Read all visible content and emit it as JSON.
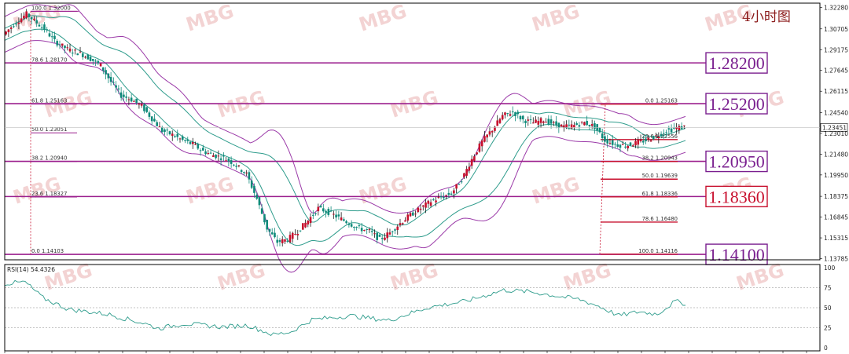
{
  "chart_data": {
    "type": "candlestick",
    "title": "4小时图",
    "price_axis": {
      "ylim": [
        1.137,
        1.326
      ],
      "ticks": [
        "1.32280",
        "1.30705",
        "1.29175",
        "1.27645",
        "1.26115",
        "1.24540",
        "1.23010",
        "1.21480",
        "1.19950",
        "1.18375",
        "1.16845",
        "1.15315",
        "1.13785"
      ]
    },
    "current_price": "1.23451",
    "key_levels": [
      {
        "label": "1.28200",
        "value": 1.282,
        "color": "#7a1f8f"
      },
      {
        "label": "1.25200",
        "value": 1.252,
        "color": "#7a1f8f"
      },
      {
        "label": "1.20950",
        "value": 1.2095,
        "color": "#7a1f8f"
      },
      {
        "label": "1.18360",
        "value": 1.1836,
        "color": "#c8102e"
      },
      {
        "label": "1.14100",
        "value": 1.141,
        "color": "#7a1f8f"
      }
    ],
    "fib_left": [
      {
        "text": "100.0 1.32000",
        "value": 1.32
      },
      {
        "text": "78.6 1.28170",
        "value": 1.2817
      },
      {
        "text": "61.8 1.25163",
        "value": 1.25163
      },
      {
        "text": "50.0 1.23051",
        "value": 1.23051
      },
      {
        "text": "38.2 1.20940",
        "value": 1.2094
      },
      {
        "text": "23.6 1.18327",
        "value": 1.18327
      },
      {
        "text": "0.0 1.14103",
        "value": 1.14103
      }
    ],
    "fib_right": [
      {
        "text": "0.0 1.25163",
        "value": 1.25163
      },
      {
        "text": "23.6 1.22556",
        "value": 1.22556
      },
      {
        "text": "38.2 1.20943",
        "value": 1.20943
      },
      {
        "text": "50.0 1.19639",
        "value": 1.19639
      },
      {
        "text": "61.8 1.18336",
        "value": 1.18336
      },
      {
        "text": "78.6 1.16480",
        "value": 1.1648
      },
      {
        "text": "100.0 1.14116",
        "value": 1.14116
      }
    ],
    "close_path": [
      [
        0,
        1.303
      ],
      [
        5,
        1.312
      ],
      [
        9,
        1.318
      ],
      [
        12,
        1.313
      ],
      [
        16,
        1.307
      ],
      [
        20,
        1.298
      ],
      [
        25,
        1.292
      ],
      [
        30,
        1.289
      ],
      [
        34,
        1.285
      ],
      [
        38,
        1.28
      ],
      [
        42,
        1.268
      ],
      [
        46,
        1.258
      ],
      [
        50,
        1.255
      ],
      [
        54,
        1.25
      ],
      [
        58,
        1.241
      ],
      [
        62,
        1.232
      ],
      [
        66,
        1.229
      ],
      [
        70,
        1.225
      ],
      [
        74,
        1.222
      ],
      [
        78,
        1.217
      ],
      [
        82,
        1.214
      ],
      [
        86,
        1.212
      ],
      [
        90,
        1.208
      ],
      [
        95,
        1.2
      ],
      [
        99,
        1.182
      ],
      [
        103,
        1.16
      ],
      [
        107,
        1.15
      ],
      [
        111,
        1.152
      ],
      [
        115,
        1.158
      ],
      [
        119,
        1.166
      ],
      [
        123,
        1.175
      ],
      [
        127,
        1.172
      ],
      [
        131,
        1.168
      ],
      [
        135,
        1.164
      ],
      [
        139,
        1.16
      ],
      [
        143,
        1.158
      ],
      [
        147,
        1.152
      ],
      [
        151,
        1.157
      ],
      [
        155,
        1.164
      ],
      [
        159,
        1.17
      ],
      [
        163,
        1.175
      ],
      [
        167,
        1.18
      ],
      [
        171,
        1.183
      ],
      [
        175,
        1.186
      ],
      [
        179,
        1.196
      ],
      [
        183,
        1.211
      ],
      [
        187,
        1.224
      ],
      [
        191,
        1.233
      ],
      [
        195,
        1.243
      ],
      [
        199,
        1.246
      ],
      [
        203,
        1.24
      ],
      [
        207,
        1.238
      ],
      [
        211,
        1.24
      ],
      [
        215,
        1.237
      ],
      [
        219,
        1.235
      ],
      [
        223,
        1.236
      ],
      [
        227,
        1.238
      ],
      [
        231,
        1.235
      ],
      [
        235,
        1.225
      ],
      [
        239,
        1.222
      ],
      [
        243,
        1.221
      ],
      [
        247,
        1.223
      ],
      [
        251,
        1.225
      ],
      [
        255,
        1.228
      ],
      [
        259,
        1.232
      ],
      [
        263,
        1.234
      ],
      [
        266,
        1.235
      ]
    ],
    "rsi": {
      "label": "RSI(14) 54.4326",
      "ylim": [
        0,
        100
      ],
      "ticks": [
        "100",
        "75",
        "50",
        "25",
        "0"
      ],
      "values": [
        [
          0,
          80
        ],
        [
          8,
          82
        ],
        [
          15,
          62
        ],
        [
          25,
          48
        ],
        [
          40,
          42
        ],
        [
          55,
          30
        ],
        [
          60,
          24
        ],
        [
          70,
          30
        ],
        [
          85,
          26
        ],
        [
          95,
          28
        ],
        [
          105,
          16
        ],
        [
          112,
          20
        ],
        [
          120,
          35
        ],
        [
          135,
          40
        ],
        [
          150,
          34
        ],
        [
          165,
          50
        ],
        [
          180,
          58
        ],
        [
          195,
          72
        ],
        [
          205,
          70
        ],
        [
          215,
          65
        ],
        [
          225,
          60
        ],
        [
          232,
          52
        ],
        [
          240,
          40
        ],
        [
          248,
          45
        ],
        [
          255,
          42
        ],
        [
          262,
          58
        ],
        [
          266,
          55
        ]
      ]
    }
  }
}
